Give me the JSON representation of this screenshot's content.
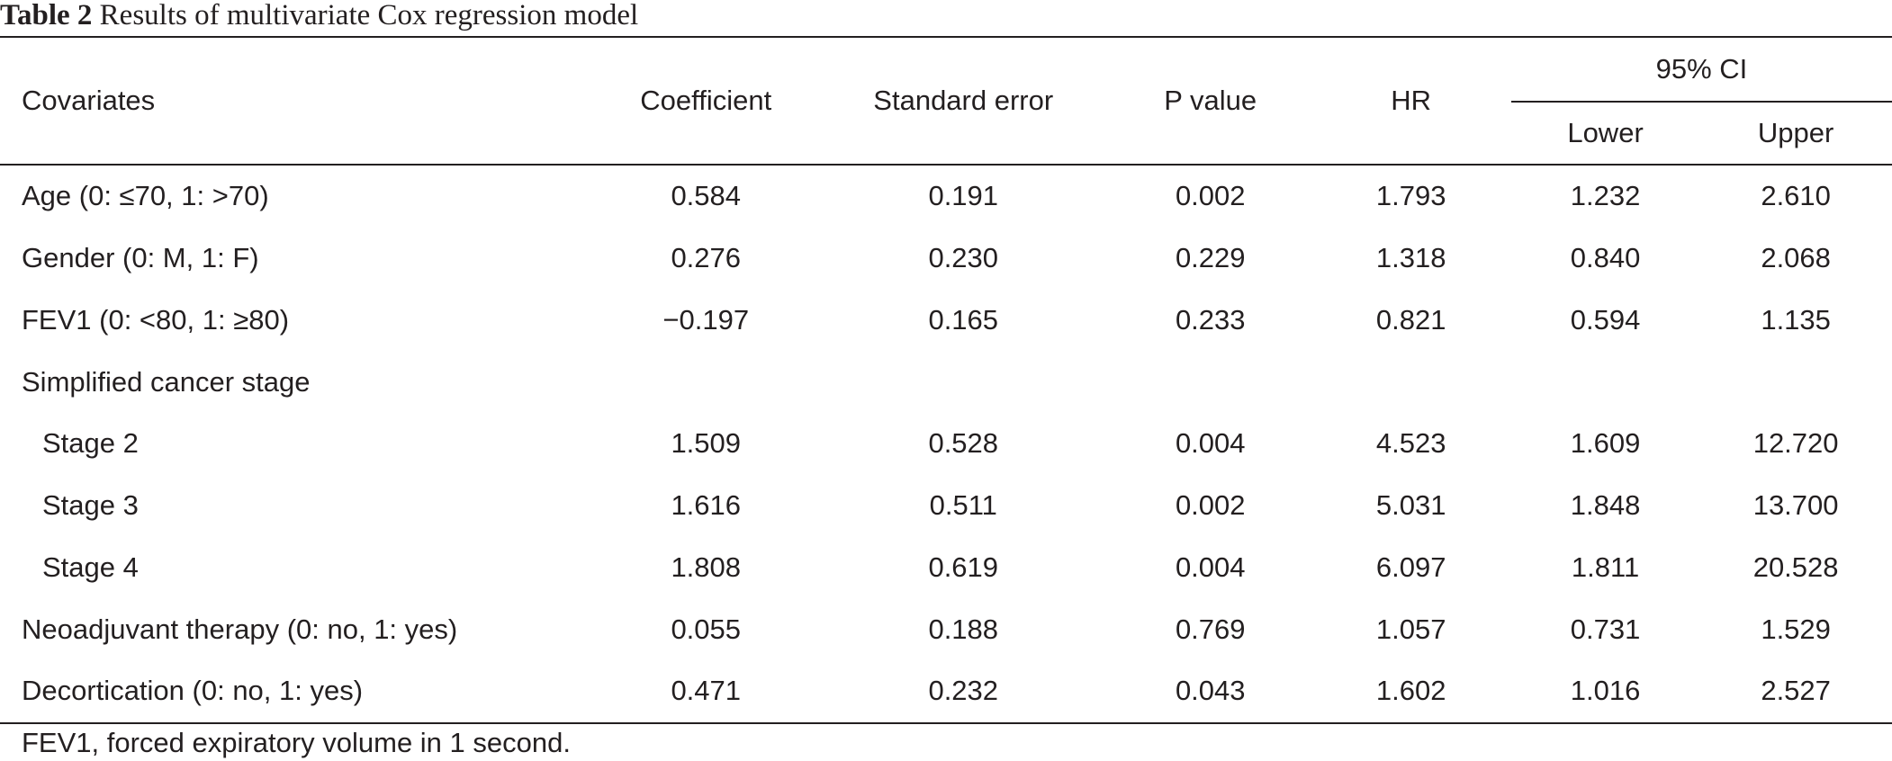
{
  "caption": {
    "label": "Table 2",
    "text": "Results of multivariate Cox regression model"
  },
  "columns": {
    "covariates": "Covariates",
    "coefficient": "Coefficient",
    "standard_error": "Standard error",
    "p_value": "P value",
    "hr": "HR",
    "ci": "95% CI",
    "lower": "Lower",
    "upper": "Upper"
  },
  "rows": [
    {
      "label": "Age (0: ≤70, 1: >70)",
      "coef": "0.584",
      "se": "0.191",
      "p": "0.002",
      "hr": "1.793",
      "lower": "1.232",
      "upper": "2.610"
    },
    {
      "label": "Gender (0: M, 1: F)",
      "coef": "0.276",
      "se": "0.230",
      "p": "0.229",
      "hr": "1.318",
      "lower": "0.840",
      "upper": "2.068"
    },
    {
      "label": "FEV1 (0: <80, 1: ≥80)",
      "coef": "−0.197",
      "se": "0.165",
      "p": "0.233",
      "hr": "0.821",
      "lower": "0.594",
      "upper": "1.135"
    },
    {
      "label": "Simplified cancer stage",
      "coef": "",
      "se": "",
      "p": "",
      "hr": "",
      "lower": "",
      "upper": ""
    },
    {
      "label": "Stage 2",
      "coef": "1.509",
      "se": "0.528",
      "p": "0.004",
      "hr": "4.523",
      "lower": "1.609",
      "upper": "12.720"
    },
    {
      "label": "Stage 3",
      "coef": "1.616",
      "se": "0.511",
      "p": "0.002",
      "hr": "5.031",
      "lower": "1.848",
      "upper": "13.700"
    },
    {
      "label": "Stage 4",
      "coef": "1.808",
      "se": "0.619",
      "p": "0.004",
      "hr": "6.097",
      "lower": "1.811",
      "upper": "20.528"
    },
    {
      "label": "Neoadjuvant therapy (0: no, 1: yes)",
      "coef": "0.055",
      "se": "0.188",
      "p": "0.769",
      "hr": "1.057",
      "lower": "0.731",
      "upper": "1.529"
    },
    {
      "label": "Decortication (0: no, 1: yes)",
      "coef": "0.471",
      "se": "0.232",
      "p": "0.043",
      "hr": "1.602",
      "lower": "1.016",
      "upper": "2.527"
    }
  ],
  "footnote": "FEV1, forced expiratory volume in 1 second."
}
